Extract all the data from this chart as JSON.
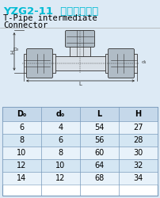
{
  "title_cn": "YZG2-11  三通中間接頭",
  "title_en1": "T-Pipe intermediate",
  "title_en2": "Connector",
  "title_color": "#00bcd4",
  "bg_color": "#ddeaf5",
  "table_header": [
    "D₀",
    "d₀",
    "L",
    "H"
  ],
  "table_data": [
    [
      6,
      4,
      54,
      27
    ],
    [
      8,
      6,
      56,
      28
    ],
    [
      10,
      8,
      60,
      30
    ],
    [
      12,
      10,
      64,
      32
    ],
    [
      14,
      12,
      68,
      34
    ]
  ],
  "header_bg": "#c5d8ea",
  "row_bg_light": "#e8f2fa",
  "row_bg_dark": "#d4e6f3",
  "border_color": "#7799bb",
  "body_color": "#d8dfe6",
  "nut_color": "#b0bcc6",
  "dark_line": "#333333",
  "figsize": [
    2.02,
    2.5
  ],
  "dpi": 100
}
